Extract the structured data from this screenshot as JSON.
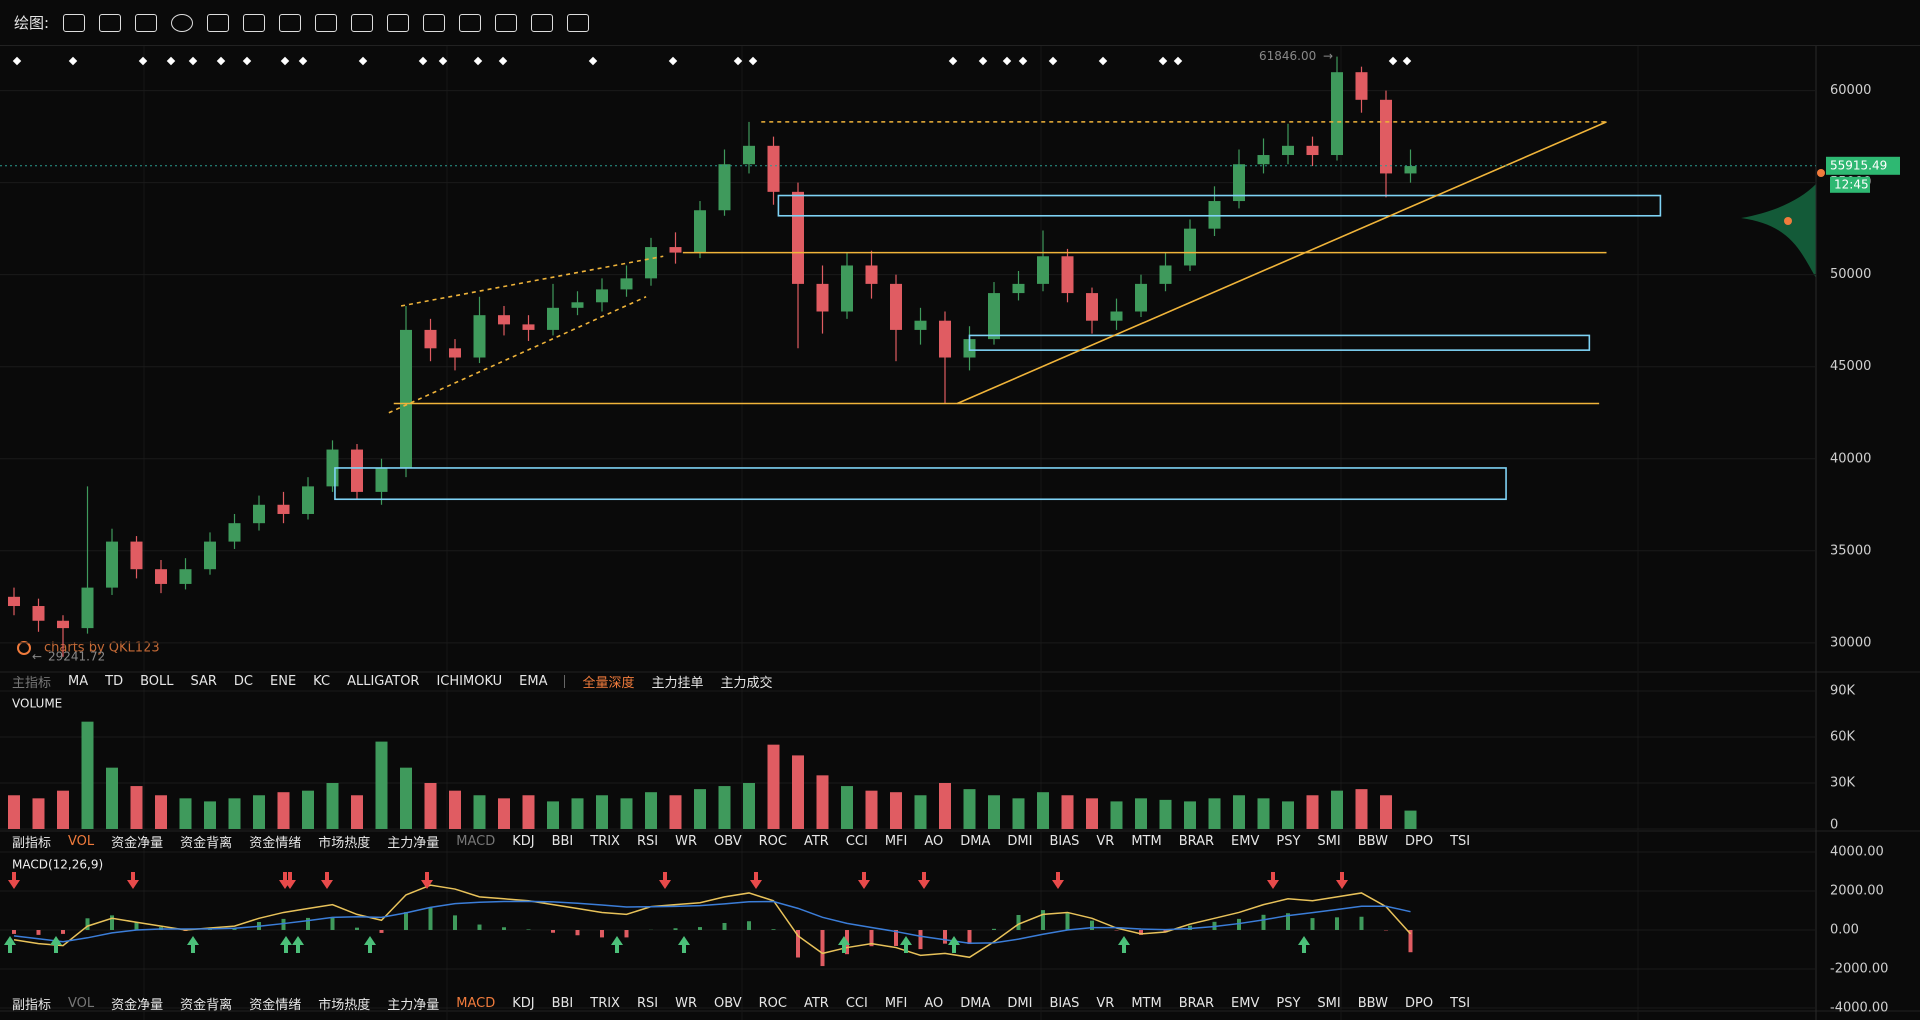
{
  "toolbar": {
    "label": "绘图:"
  },
  "main_tabs": {
    "items": [
      "主指标",
      "MA",
      "TD",
      "BOLL",
      "SAR",
      "DC",
      "ENE",
      "KC",
      "ALLIGATOR",
      "ICHIMOKU",
      "EMA",
      "全量深度",
      "主力挂单",
      "主力成交"
    ],
    "disabled": 0,
    "active": 11,
    "separator_before": 11
  },
  "sub_tabs_1": {
    "items": [
      "副指标",
      "VOL",
      "资金净量",
      "资金背离",
      "资金情绪",
      "市场热度",
      "主力净量",
      "MACD",
      "KDJ",
      "BBI",
      "TRIX",
      "RSI",
      "WR",
      "OBV",
      "ROC",
      "ATR",
      "CCI",
      "MFI",
      "AO",
      "DMA",
      "DMI",
      "BIAS",
      "VR",
      "MTM",
      "BRAR",
      "EMV",
      "PSY",
      "SMI",
      "BBW",
      "DPO",
      "TSI"
    ],
    "disabled": 7,
    "active": 1
  },
  "sub_tabs_2": {
    "items": [
      "副指标",
      "VOL",
      "资金净量",
      "资金背离",
      "资金情绪",
      "市场热度",
      "主力净量",
      "MACD",
      "KDJ",
      "BBI",
      "TRIX",
      "RSI",
      "WR",
      "OBV",
      "ROC",
      "ATR",
      "CCI",
      "MFI",
      "AO",
      "DMA",
      "DMI",
      "BIAS",
      "VR",
      "MTM",
      "BRAR",
      "EMV",
      "PSY",
      "SMI",
      "BBW",
      "DPO",
      "TSI"
    ],
    "disabled": 1,
    "active": 7
  },
  "watermark": "charts by QKL123",
  "chart_data": [
    {
      "type": "candlestick",
      "up_color": "#3f9a5c",
      "down_color": "#e05c62",
      "open": [
        32500,
        32000,
        31200,
        30800,
        33000,
        35500,
        34000,
        33200,
        34000,
        35500,
        36500,
        37500,
        37000,
        38500,
        40500,
        38200,
        39500,
        47000,
        46000,
        45500,
        47800,
        47300,
        47000,
        48200,
        48500,
        49200,
        49800,
        51500,
        51200,
        53500,
        56000,
        57000,
        54500,
        49500,
        48000,
        50500,
        49500,
        47000,
        47500,
        45500,
        46500,
        49000,
        49500,
        51000,
        49000,
        47500,
        48000,
        49500,
        50500,
        52500,
        54000,
        56000,
        56500,
        57000,
        56500,
        61000,
        59500,
        55500
      ],
      "high": [
        33000,
        32400,
        31500,
        38500,
        36200,
        35800,
        34500,
        34600,
        36000,
        37000,
        38000,
        38200,
        39000,
        41000,
        40800,
        40000,
        48300,
        47600,
        46500,
        48800,
        48300,
        47800,
        49500,
        49100,
        49800,
        50500,
        52000,
        52300,
        54000,
        56800,
        58300,
        57500,
        55000,
        50500,
        51200,
        51300,
        50000,
        48200,
        48000,
        47200,
        49600,
        50200,
        52400,
        51400,
        49300,
        48700,
        50000,
        51200,
        53000,
        54800,
        56800,
        57400,
        58200,
        57500,
        61846,
        61300,
        60000,
        56800
      ],
      "low": [
        31500,
        30600,
        29241.72,
        30500,
        32600,
        33500,
        32700,
        32900,
        33700,
        35100,
        36100,
        36500,
        36700,
        38200,
        37800,
        37500,
        39000,
        45300,
        44800,
        45200,
        46700,
        46400,
        46700,
        47800,
        48000,
        48800,
        49400,
        50600,
        50900,
        53200,
        55500,
        53800,
        46000,
        46800,
        47600,
        48700,
        45300,
        46200,
        43000,
        44800,
        46200,
        48600,
        49100,
        48500,
        46800,
        47000,
        47700,
        49100,
        50200,
        52100,
        53600,
        55500,
        56000,
        55900,
        56200,
        58800,
        54200,
        55000
      ],
      "close": [
        32000,
        31200,
        30800,
        33000,
        35500,
        34000,
        33200,
        34000,
        35500,
        36500,
        37500,
        37000,
        38500,
        40500,
        38200,
        39500,
        47000,
        46000,
        45500,
        47800,
        47300,
        47000,
        48200,
        48500,
        49200,
        49800,
        51500,
        51200,
        53500,
        56000,
        57000,
        54500,
        49500,
        48000,
        50500,
        49500,
        47000,
        47500,
        45500,
        46500,
        49000,
        49500,
        51000,
        49000,
        47500,
        48000,
        49500,
        50500,
        52500,
        54000,
        56000,
        56500,
        57000,
        56500,
        61000,
        59500,
        55500,
        55900
      ],
      "ylim": [
        28470,
        62260
      ],
      "yticks": [
        30000,
        35000,
        40000,
        45000,
        50000,
        55000,
        60000
      ],
      "last_price": 55915.49,
      "countdown": "12:45",
      "high_label": {
        "value": 61846,
        "label": "61846.00"
      },
      "low_label": 29241.72,
      "hlines": [
        {
          "y": 58300,
          "x": [
            30.5,
            65
          ],
          "dashed": true
        },
        {
          "y": 51200,
          "x": [
            27.3,
            65
          ],
          "dashed": false
        },
        {
          "y": 43000,
          "x": [
            15.5,
            64.7
          ],
          "dashed": false
        }
      ],
      "boxes": [
        {
          "x": [
            31.2,
            67.2
          ],
          "y": [
            53200,
            54300
          ]
        },
        {
          "x": [
            39,
            64.3
          ],
          "y": [
            45900,
            46700
          ]
        },
        {
          "x": [
            13.1,
            60.9
          ],
          "y": [
            37800,
            39500
          ]
        }
      ],
      "trendlines": [
        {
          "x": [
            38.5,
            65
          ],
          "y": [
            43000,
            58300
          ],
          "dashed": false
        },
        {
          "x": [
            15.8,
            26.5
          ],
          "y": [
            48300,
            51000
          ],
          "dashed": true
        },
        {
          "x": [
            15.3,
            25.8
          ],
          "y": [
            42500,
            48800
          ],
          "dashed": true
        }
      ]
    },
    {
      "type": "bar",
      "title": "VOLUME",
      "values": [
        22000,
        20000,
        25000,
        70000,
        40000,
        28000,
        22000,
        20000,
        18000,
        20000,
        22000,
        24000,
        25000,
        30000,
        22000,
        57000,
        40000,
        30000,
        25000,
        22000,
        20000,
        22000,
        18000,
        20000,
        22000,
        20000,
        24000,
        22000,
        26000,
        28000,
        30000,
        55000,
        48000,
        35000,
        28000,
        25000,
        24000,
        22000,
        30000,
        26000,
        22000,
        20000,
        24000,
        22000,
        20000,
        18000,
        20000,
        19000,
        18000,
        20000,
        22000,
        20000,
        18000,
        22000,
        25000,
        26000,
        22000,
        12000
      ],
      "ylim": [
        0,
        90000
      ],
      "yticks": [
        0,
        {
          "value": 30000,
          "label": "30K"
        },
        {
          "value": 60000,
          "label": "60K"
        },
        {
          "value": 90000,
          "label": "90K"
        }
      ]
    },
    {
      "type": "macd",
      "title": "MACD(12,26,9)",
      "series": [
        {
          "color": "#e8c25a",
          "values": [
            -500,
            -700,
            -800,
            200,
            600,
            400,
            200,
            0,
            100,
            200,
            600,
            900,
            1100,
            1300,
            800,
            500,
            1800,
            2300,
            2100,
            1700,
            1600,
            1500,
            1300,
            1100,
            900,
            800,
            1200,
            1300,
            1400,
            1700,
            1900,
            1500,
            -300,
            -1200,
            -900,
            -700,
            -900,
            -1300,
            -1200,
            -1400,
            -600,
            300,
            800,
            900,
            600,
            100,
            -200,
            -100,
            300,
            600,
            900,
            1300,
            1600,
            1500,
            1700,
            1900,
            1200,
            -200
          ]
        },
        {
          "color": "#3b7dd8",
          "values": [
            -300,
            -450,
            -600,
            -400,
            -150,
            0,
            50,
            50,
            60,
            90,
            190,
            330,
            480,
            650,
            680,
            650,
            880,
            1160,
            1350,
            1420,
            1460,
            1470,
            1440,
            1370,
            1280,
            1180,
            1190,
            1210,
            1250,
            1340,
            1450,
            1460,
            1110,
            650,
            340,
            130,
            -80,
            -320,
            -500,
            -680,
            -660,
            -470,
            -220,
            0,
            120,
            120,
            50,
            20,
            80,
            180,
            330,
            520,
            740,
            890,
            1050,
            1220,
            1220,
            940
          ]
        }
      ],
      "hist": [
        -200,
        -250,
        -200,
        600,
        750,
        400,
        150,
        -50,
        40,
        110,
        410,
        570,
        620,
        650,
        120,
        -150,
        920,
        1140,
        750,
        280,
        140,
        30,
        -140,
        -270,
        -380,
        -380,
        10,
        90,
        150,
        360,
        450,
        40,
        -1410,
        -1850,
        -1240,
        -830,
        -820,
        -980,
        -700,
        -720,
        60,
        770,
        1020,
        900,
        480,
        -20,
        -250,
        -120,
        220,
        420,
        570,
        780,
        860,
        610,
        650,
        680,
        -20,
        -1140
      ],
      "hist_up_color": "#3f9a5c",
      "hist_down_color": "#e05c62",
      "ylim": [
        -4000,
        4000
      ],
      "yticks": [
        {
          "value": -4000,
          "label": "-4000.00"
        },
        {
          "value": -2000,
          "label": "-2000.00"
        },
        {
          "value": 0,
          "label": "0.00"
        },
        {
          "value": 2000,
          "label": "2000.00"
        },
        {
          "value": 4000,
          "label": "4000.00"
        }
      ]
    }
  ]
}
